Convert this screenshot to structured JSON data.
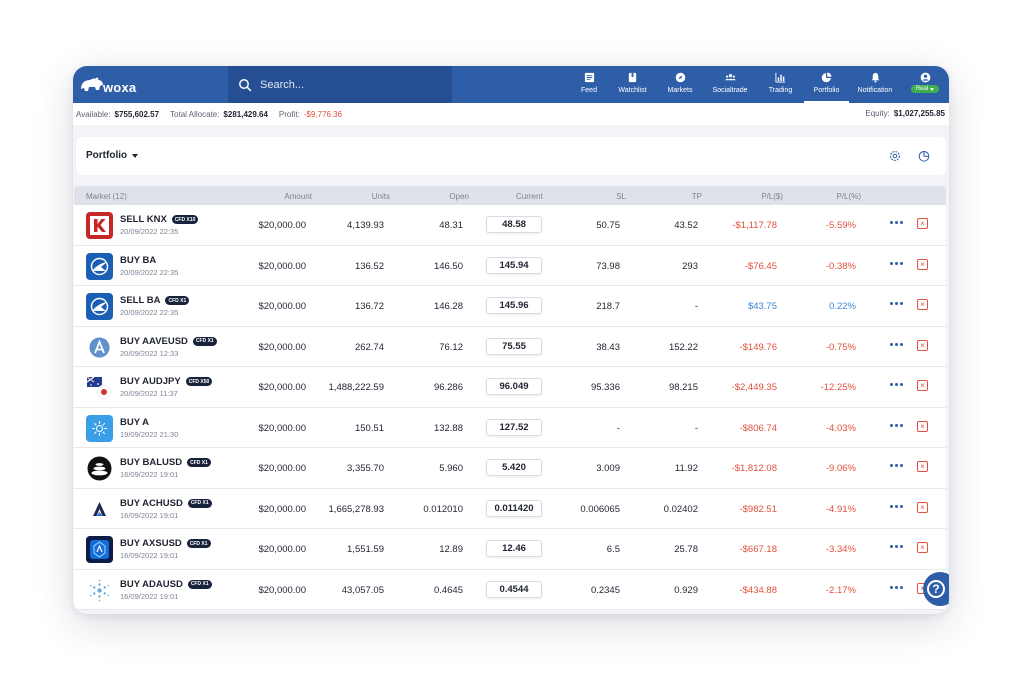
{
  "app": {
    "logo_text": "woxa"
  },
  "search": {
    "placeholder": "Search..."
  },
  "nav": [
    {
      "label": "Feed",
      "icon": "feed-icon"
    },
    {
      "label": "Watchlist",
      "icon": "watchlist-icon"
    },
    {
      "label": "Markets",
      "icon": "compass-icon"
    },
    {
      "label": "Socialtrade",
      "icon": "users-icon"
    },
    {
      "label": "Trading",
      "icon": "bar-chart-icon"
    },
    {
      "label": "Portfolio",
      "icon": "pie-chart-icon",
      "active": true
    },
    {
      "label": "Notification",
      "icon": "bell-icon"
    }
  ],
  "account": {
    "mode": "Real"
  },
  "summary": {
    "available_label": "Available:",
    "available": "$755,602.57",
    "allocate_label": "Total Allocate:",
    "allocate": "$281,429.64",
    "profit_label": "Profit:",
    "profit": "-$9,776.36",
    "equity_label": "Equity:",
    "equity": "$1,027,255.85"
  },
  "portfolio": {
    "title": "Portfolio"
  },
  "columns": {
    "market": "Market (12)",
    "amount": "Amount",
    "units": "Units",
    "open": "Open",
    "current": "Current",
    "sl": "SL",
    "tp": "TP",
    "pl_usd": "P/L($)",
    "pl_pct": "P/L(%)"
  },
  "rows": [
    {
      "name": "SELL KNX",
      "badge": "CFD X10",
      "date": "20/09/2022 22:35",
      "amount": "$20,000.00",
      "units": "4,139.93",
      "open": "48.31",
      "current": "48.58",
      "sl": "50.75",
      "tp": "43.52",
      "pl_usd": "-$1,117.78",
      "pl_pct": "-5.59%"
    },
    {
      "name": "BUY BA",
      "badge": "",
      "date": "20/09/2022 22:35",
      "amount": "$20,000.00",
      "units": "136.52",
      "open": "146.50",
      "current": "145.94",
      "sl": "73.98",
      "tp": "293",
      "pl_usd": "-$76.45",
      "pl_pct": "-0.38%"
    },
    {
      "name": "SELL BA",
      "badge": "CFD X1",
      "date": "20/09/2022 22:35",
      "amount": "$20,000.00",
      "units": "136.72",
      "open": "146.28",
      "current": "145.96",
      "sl": "218.7",
      "tp": "-",
      "pl_usd": "$43.75",
      "pl_pct": "0.22%"
    },
    {
      "name": "BUY AAVEUSD",
      "badge": "CFD X1",
      "date": "20/09/2022 12:33",
      "amount": "$20,000.00",
      "units": "262.74",
      "open": "76.12",
      "current": "75.55",
      "sl": "38.43",
      "tp": "152.22",
      "pl_usd": "-$149.76",
      "pl_pct": "-0.75%"
    },
    {
      "name": "BUY AUDJPY",
      "badge": "CFD X50",
      "date": "20/09/2022 11:37",
      "amount": "$20,000.00",
      "units": "1,488,222.59",
      "open": "96.286",
      "current": "96.049",
      "sl": "95.336",
      "tp": "98.215",
      "pl_usd": "-$2,449.35",
      "pl_pct": "-12.25%"
    },
    {
      "name": "BUY A",
      "badge": "",
      "date": "19/09/2022 21:30",
      "amount": "$20,000.00",
      "units": "150.51",
      "open": "132.88",
      "current": "127.52",
      "sl": "-",
      "tp": "-",
      "pl_usd": "-$806.74",
      "pl_pct": "-4.03%"
    },
    {
      "name": "BUY BALUSD",
      "badge": "CFD X1",
      "date": "16/09/2022 19:01",
      "amount": "$20,000.00",
      "units": "3,355.70",
      "open": "5.960",
      "current": "5.420",
      "sl": "3.009",
      "tp": "11.92",
      "pl_usd": "-$1,812.08",
      "pl_pct": "-9.06%"
    },
    {
      "name": "BUY ACHUSD",
      "badge": "CFD X1",
      "date": "16/09/2022 19:01",
      "amount": "$20,000.00",
      "units": "1,665,278.93",
      "open": "0.012010",
      "current": "0.011420",
      "sl": "0.006065",
      "tp": "0.02402",
      "pl_usd": "-$982.51",
      "pl_pct": "-4.91%"
    },
    {
      "name": "BUY AXSUSD",
      "badge": "CFD X1",
      "date": "16/09/2022 19:01",
      "amount": "$20,000.00",
      "units": "1,551.59",
      "open": "12.89",
      "current": "12.46",
      "sl": "6.5",
      "tp": "25.78",
      "pl_usd": "-$667.18",
      "pl_pct": "-3.34%"
    },
    {
      "name": "BUY ADAUSD",
      "badge": "CFD X1",
      "date": "16/09/2022 19:01",
      "amount": "$20,000.00",
      "units": "43,057.05",
      "open": "0.4645",
      "current": "0.4544",
      "sl": "0.2345",
      "tp": "0.929",
      "pl_usd": "-$434.88",
      "pl_pct": "-2.17%"
    }
  ],
  "colors": {
    "brand": "#2f5ea8",
    "negative": "#e0503d",
    "positive": "#3a86d9",
    "real": "#3fae4f"
  }
}
